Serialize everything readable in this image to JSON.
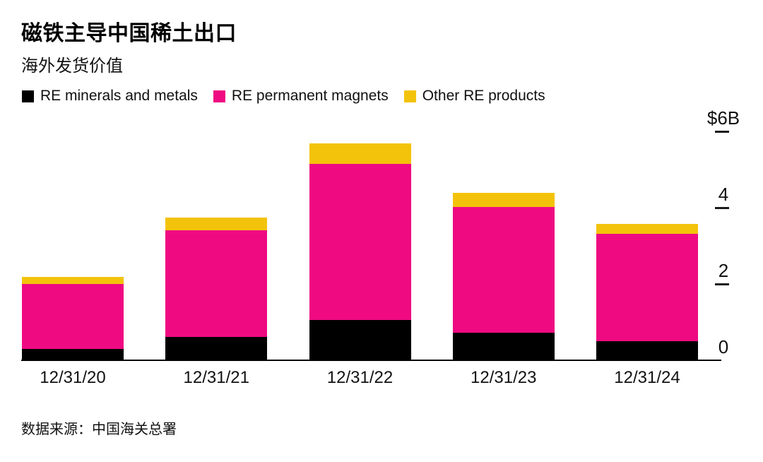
{
  "header": {
    "title": "磁铁主导中国稀土出口",
    "subtitle": "海外发货价值"
  },
  "legend": [
    {
      "label": "RE minerals and metals",
      "color": "#000000"
    },
    {
      "label": "RE permanent magnets",
      "color": "#EF0A82"
    },
    {
      "label": "Other RE products",
      "color": "#F3C30B"
    }
  ],
  "chart_data": {
    "type": "bar",
    "stacked": true,
    "title": "磁铁主导中国稀土出口",
    "subtitle": "海外发货价值",
    "unit": "$B",
    "categories": [
      "12/31/20",
      "12/31/21",
      "12/31/22",
      "12/31/23",
      "12/31/24"
    ],
    "series": [
      {
        "name": "RE minerals and metals",
        "color": "#000000",
        "values": [
          0.31,
          0.63,
          1.07,
          0.74,
          0.52
        ]
      },
      {
        "name": "RE permanent magnets",
        "color": "#EF0A82",
        "values": [
          1.7,
          2.8,
          4.09,
          3.3,
          2.81
        ]
      },
      {
        "name": "Other RE products",
        "color": "#F3C30B",
        "values": [
          0.19,
          0.33,
          0.54,
          0.37,
          0.26
        ]
      }
    ],
    "totals": [
      2.2,
      3.76,
      5.7,
      4.41,
      3.59
    ],
    "y_ticks": [
      {
        "label": "$6B",
        "value": 6
      },
      {
        "label": "4",
        "value": 4
      },
      {
        "label": "2",
        "value": 2
      },
      {
        "label": "0",
        "value": 0
      }
    ],
    "ylim": [
      0,
      6.5
    ],
    "grid": false,
    "legend_position": "top",
    "axis_color": "#000000",
    "background": "#ffffff"
  },
  "source": "数据来源：中国海关总署"
}
